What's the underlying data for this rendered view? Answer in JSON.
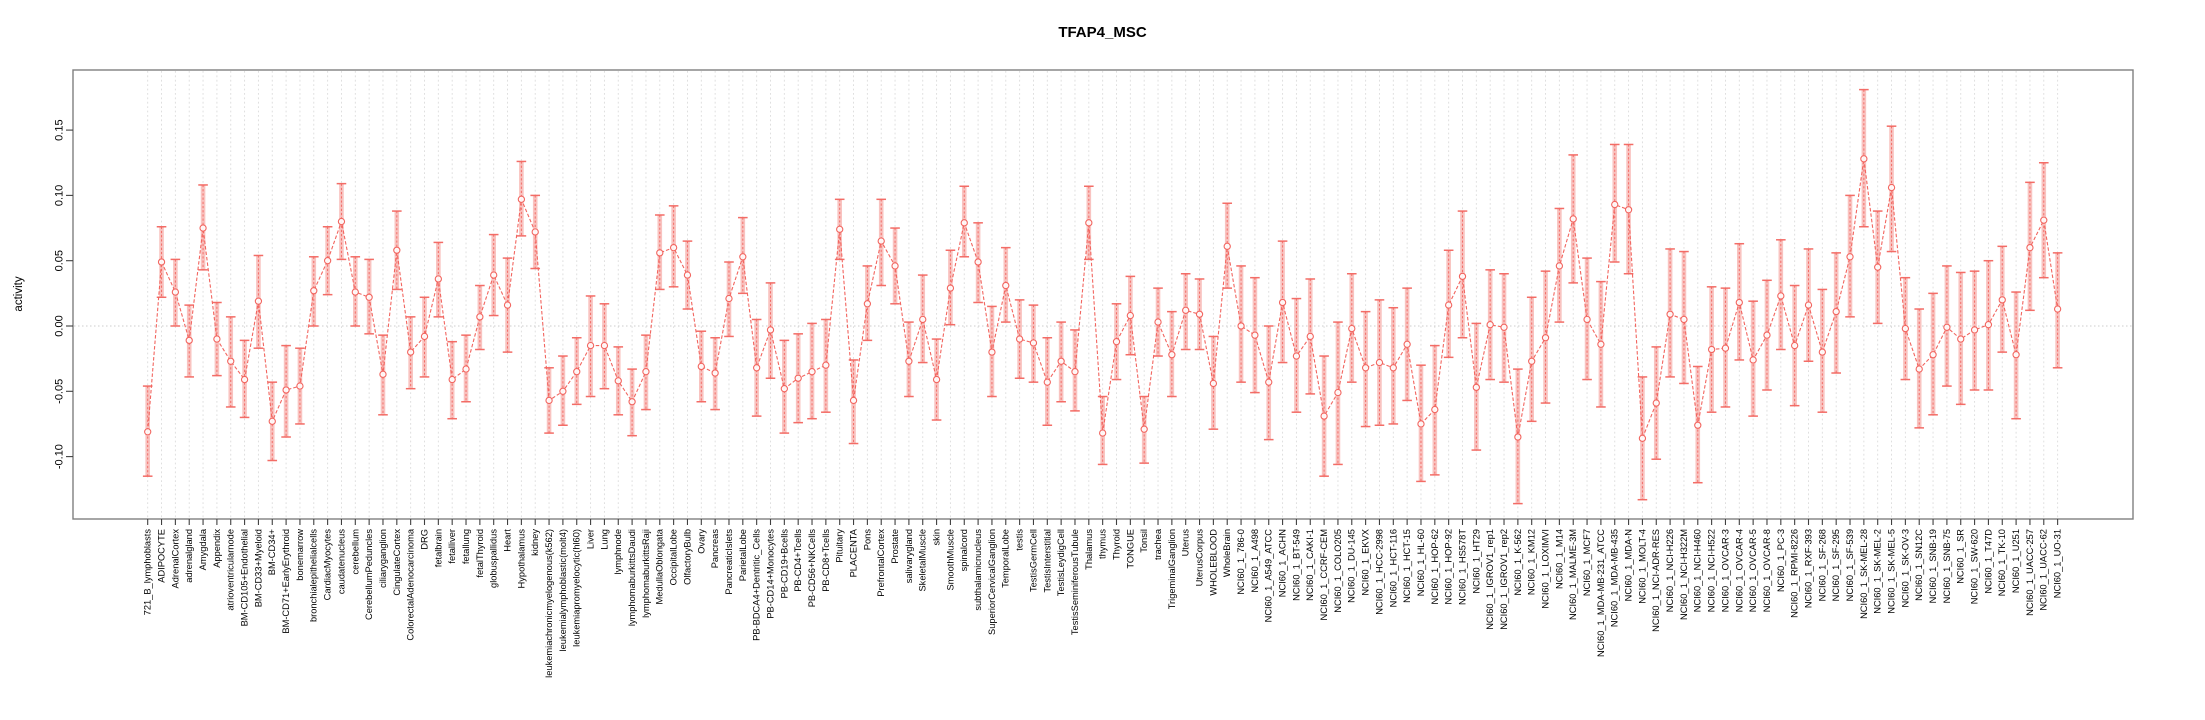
{
  "chart_data": {
    "type": "line",
    "title": "TFAP4_MSC",
    "xlabel": "",
    "ylabel": "activity",
    "ylim": [
      -0.148,
      0.196
    ],
    "yticks": [
      0.15,
      0.1,
      0.05,
      0.0,
      -0.05,
      -0.1
    ],
    "ytick_labels": [
      "0.15",
      "0.10",
      "0.05",
      "0.00",
      "-0.05",
      "-0.10"
    ],
    "grid": "vertical dashed gridline per category, dotted horizontal line at 0",
    "legend": "none",
    "marker": "open-circle",
    "error_bars": true,
    "colors": {
      "series": "#f2655f",
      "errorbar_band": "#f8b4b0",
      "grid": "#dcdcdc",
      "zero_line": "#cccccc",
      "axis": "#7f7f7f",
      "text": "#000000",
      "background": "#ffffff"
    },
    "categories": [
      "721_B_lymphoblasts",
      "ADIPOCYTE",
      "AdrenalCortex",
      "adrenalgland",
      "Amygdala",
      "Appendix",
      "atrioventricularnode",
      "BM-CD105+Endothelial",
      "BM-CD33+Myeloid",
      "BM-CD34+",
      "BM-CD71+EarlyErythroid",
      "bonemarrow",
      "bronchialepithelialcells",
      "CardiacMyocytes",
      "caudatenucleus",
      "cerebellum",
      "CerebellumPeduncles",
      "ciliaryganglion",
      "CingulateCortex",
      "ColorectalAdenocarcinoma",
      "DRG",
      "fetalbrain",
      "fetalliver",
      "fetallung",
      "fetalThyroid",
      "globuspallidus",
      "Heart",
      "Hypothalamus",
      "kidney",
      "leukemiachronicmyelogenous(k562)",
      "leukemialymphoblastic(molt4)",
      "leukemiapromyelocytic(hl60)",
      "Liver",
      "Lung",
      "lymphnode",
      "lymphomaburkittsDaudi",
      "lymphomaburkittsRaji",
      "MedullaOblongata",
      "OccipitalLobe",
      "OlfactoryBulb",
      "Ovary",
      "Pancreas",
      "PancreaticIslets",
      "ParietalLobe",
      "PB-BDCA4+Dentritic_Cells",
      "PB-CD14+Monocytes",
      "PB-CD19+Bcells",
      "PB-CD4+Tcells",
      "PB-CD56+NKCells",
      "PB-CD8+Tcells",
      "Pituitary",
      "PLACENTA",
      "Pons",
      "PrefrontalCortex",
      "Prostate",
      "salivarygland",
      "SkeletalMuscle",
      "skin",
      "SmoothMuscle",
      "spinalcord",
      "subthalamicnucleus",
      "SuperiorCervicalGanglion",
      "TemporalLobe",
      "testis",
      "TestisGermCell",
      "TestisInterstitial",
      "TestisLeydigCell",
      "TestisSeminiferousTubule",
      "Thalamus",
      "thymus",
      "Thyroid",
      "TONGUE",
      "Tonsil",
      "trachea",
      "TrigeminalGanglion",
      "Uterus",
      "UterusCorpus",
      "WHOLEBLOOD",
      "WholeBrain",
      "NCI60_1_786-0",
      "NCI60_1_A498",
      "NCI60_1_A549_ATCC",
      "NCI60_1_ACHN",
      "NCI60_1_BT-549",
      "NCI60_1_CAKI-1",
      "NCI60_1_CCRF-CEM",
      "NCI60_1_COLO205",
      "NCI60_1_DU-145",
      "NCI60_1_EKVX",
      "NCI60_1_HCC-2998",
      "NCI60_1_HCT-116",
      "NCI60_1_HCT-15",
      "NCI60_1_HL-60",
      "NCI60_1_HOP-62",
      "NCI60_1_HOP-92",
      "NCI60_1_HS578T",
      "NCI60_1_HT29",
      "NCI60_1_IGROV1_rep1",
      "NCI60_1_IGROV1_rep2",
      "NCI60_1_K-562",
      "NCI60_1_KM12",
      "NCI60_1_LOXIMVI",
      "NCI60_1_M14",
      "NCI60_1_MALME-3M",
      "NCI60_1_MCF7",
      "NCI60_1_MDA-MB-231_ATCC",
      "NCI60_1_MDA-MB-435",
      "NCI60_1_MDA-N",
      "NCI60_1_MOLT-4",
      "NCI60_1_NCI-ADR-RES",
      "NCI60_1_NCI-H226",
      "NCI60_1_NCI-H322M",
      "NCI60_1_NCI-H460",
      "NCI60_1_NCI-H522",
      "NCI60_1_OVCAR-3",
      "NCI60_1_OVCAR-4",
      "NCI60_1_OVCAR-5",
      "NCI60_1_OVCAR-8",
      "NCI60_1_PC-3",
      "NCI60_1_RPMI-8226",
      "NCI60_1_RXF-393",
      "NCI60_1_SF-268",
      "NCI60_1_SF-295",
      "NCI60_1_SF-539",
      "NCI60_1_SK-MEL-28",
      "NCI60_1_SK-MEL-2",
      "NCI60_1_SK-MEL-5",
      "NCI60_1_SK-OV-3",
      "NCI60_1_SN12C",
      "NCI60_1_SNB-19",
      "NCI60_1_SNB-75",
      "NCI60_1_SR",
      "NCI60_1_SW-620",
      "NCI60_1_T47D",
      "NCI60_1_TK-10",
      "NCI60_1_U251",
      "NCI60_1_UACC-257",
      "NCI60_1_UACC-62",
      "NCI60_1_UO-31"
    ],
    "series": [
      {
        "name": "activity",
        "values": [
          -0.081,
          0.049,
          0.026,
          -0.011,
          0.075,
          -0.01,
          -0.027,
          -0.041,
          0.019,
          -0.073,
          -0.049,
          -0.046,
          0.027,
          0.05,
          0.08,
          0.026,
          0.022,
          -0.037,
          0.058,
          -0.02,
          -0.008,
          0.036,
          -0.041,
          -0.033,
          0.007,
          0.039,
          0.016,
          0.097,
          0.072,
          -0.057,
          -0.05,
          -0.035,
          -0.015,
          -0.015,
          -0.042,
          -0.058,
          -0.035,
          0.056,
          0.06,
          0.039,
          -0.031,
          -0.036,
          0.021,
          0.053,
          -0.032,
          -0.003,
          -0.048,
          -0.04,
          -0.035,
          -0.03,
          0.074,
          -0.057,
          0.017,
          0.065,
          0.046,
          -0.027,
          0.005,
          -0.041,
          0.029,
          0.079,
          0.049,
          -0.02,
          0.031,
          -0.01,
          -0.013,
          -0.043,
          -0.027,
          -0.035,
          0.079,
          -0.082,
          -0.012,
          0.008,
          -0.079,
          0.003,
          -0.022,
          0.012,
          0.009,
          -0.044,
          0.061,
          0.0,
          -0.007,
          -0.043,
          0.018,
          -0.023,
          -0.008,
          -0.069,
          -0.051,
          -0.002,
          -0.032,
          -0.028,
          -0.032,
          -0.014,
          -0.075,
          -0.064,
          0.016,
          0.038,
          -0.047,
          0.001,
          -0.001,
          -0.085,
          -0.027,
          -0.009,
          0.046,
          0.082,
          0.005,
          -0.014,
          0.093,
          0.089,
          -0.086,
          -0.059,
          0.009,
          0.005,
          -0.076,
          -0.018,
          -0.017,
          0.018,
          -0.026,
          -0.007,
          0.023,
          -0.015,
          0.016,
          -0.02,
          0.011,
          0.053,
          0.128,
          0.045,
          0.106,
          -0.002,
          -0.033,
          -0.022,
          -0.001,
          -0.01,
          -0.003,
          0.001,
          0.02,
          -0.022,
          0.06,
          0.081,
          0.013
        ],
        "err_low": [
          -0.115,
          0.022,
          0.0,
          -0.039,
          0.043,
          -0.038,
          -0.062,
          -0.07,
          -0.017,
          -0.103,
          -0.085,
          -0.075,
          0.0,
          0.024,
          0.051,
          0.0,
          -0.006,
          -0.068,
          0.028,
          -0.048,
          -0.039,
          0.007,
          -0.071,
          -0.058,
          -0.018,
          0.008,
          -0.02,
          0.069,
          0.044,
          -0.082,
          -0.076,
          -0.06,
          -0.054,
          -0.048,
          -0.068,
          -0.084,
          -0.064,
          0.028,
          0.03,
          0.013,
          -0.058,
          -0.064,
          -0.008,
          0.025,
          -0.069,
          -0.04,
          -0.082,
          -0.074,
          -0.071,
          -0.066,
          0.051,
          -0.09,
          -0.011,
          0.031,
          0.017,
          -0.054,
          -0.028,
          -0.072,
          0.001,
          0.053,
          0.018,
          -0.054,
          0.003,
          -0.04,
          -0.043,
          -0.076,
          -0.058,
          -0.065,
          0.051,
          -0.106,
          -0.041,
          -0.022,
          -0.105,
          -0.023,
          -0.054,
          -0.018,
          -0.018,
          -0.079,
          0.029,
          -0.043,
          -0.051,
          -0.087,
          -0.028,
          -0.066,
          -0.052,
          -0.115,
          -0.106,
          -0.043,
          -0.077,
          -0.076,
          -0.075,
          -0.057,
          -0.119,
          -0.114,
          -0.024,
          -0.009,
          -0.095,
          -0.041,
          -0.043,
          -0.136,
          -0.073,
          -0.059,
          0.003,
          0.033,
          -0.041,
          -0.062,
          0.049,
          0.04,
          -0.133,
          -0.102,
          -0.039,
          -0.044,
          -0.12,
          -0.066,
          -0.062,
          -0.026,
          -0.069,
          -0.049,
          -0.018,
          -0.061,
          -0.027,
          -0.066,
          -0.036,
          0.007,
          0.076,
          0.002,
          0.057,
          -0.041,
          -0.078,
          -0.068,
          -0.046,
          -0.06,
          -0.049,
          -0.049,
          -0.02,
          -0.071,
          0.012,
          0.037,
          -0.032
        ],
        "err_high": [
          -0.046,
          0.076,
          0.051,
          0.016,
          0.108,
          0.018,
          0.007,
          -0.011,
          0.054,
          -0.043,
          -0.015,
          -0.017,
          0.053,
          0.076,
          0.109,
          0.053,
          0.051,
          -0.007,
          0.088,
          0.007,
          0.022,
          0.064,
          -0.012,
          -0.007,
          0.031,
          0.07,
          0.052,
          0.126,
          0.1,
          -0.032,
          -0.023,
          -0.009,
          0.023,
          0.017,
          -0.016,
          -0.033,
          -0.007,
          0.085,
          0.092,
          0.065,
          -0.004,
          -0.009,
          0.049,
          0.083,
          0.005,
          0.033,
          -0.011,
          -0.006,
          0.002,
          0.005,
          0.097,
          -0.026,
          0.046,
          0.097,
          0.075,
          0.003,
          0.039,
          -0.01,
          0.058,
          0.107,
          0.079,
          0.015,
          0.06,
          0.02,
          0.016,
          -0.009,
          0.003,
          -0.003,
          0.107,
          -0.054,
          0.017,
          0.038,
          -0.054,
          0.029,
          0.011,
          0.04,
          0.036,
          -0.008,
          0.094,
          0.046,
          0.037,
          0.0,
          0.065,
          0.021,
          0.036,
          -0.023,
          0.003,
          0.04,
          0.011,
          0.02,
          0.014,
          0.029,
          -0.03,
          -0.015,
          0.058,
          0.088,
          0.002,
          0.043,
          0.04,
          -0.033,
          0.022,
          0.042,
          0.09,
          0.131,
          0.052,
          0.034,
          0.139,
          0.139,
          -0.039,
          -0.016,
          0.059,
          0.057,
          -0.031,
          0.03,
          0.029,
          0.063,
          0.019,
          0.035,
          0.066,
          0.031,
          0.059,
          0.028,
          0.056,
          0.1,
          0.181,
          0.088,
          0.153,
          0.037,
          0.013,
          0.025,
          0.046,
          0.041,
          0.042,
          0.05,
          0.061,
          0.026,
          0.11,
          0.125,
          0.056
        ]
      }
    ]
  }
}
